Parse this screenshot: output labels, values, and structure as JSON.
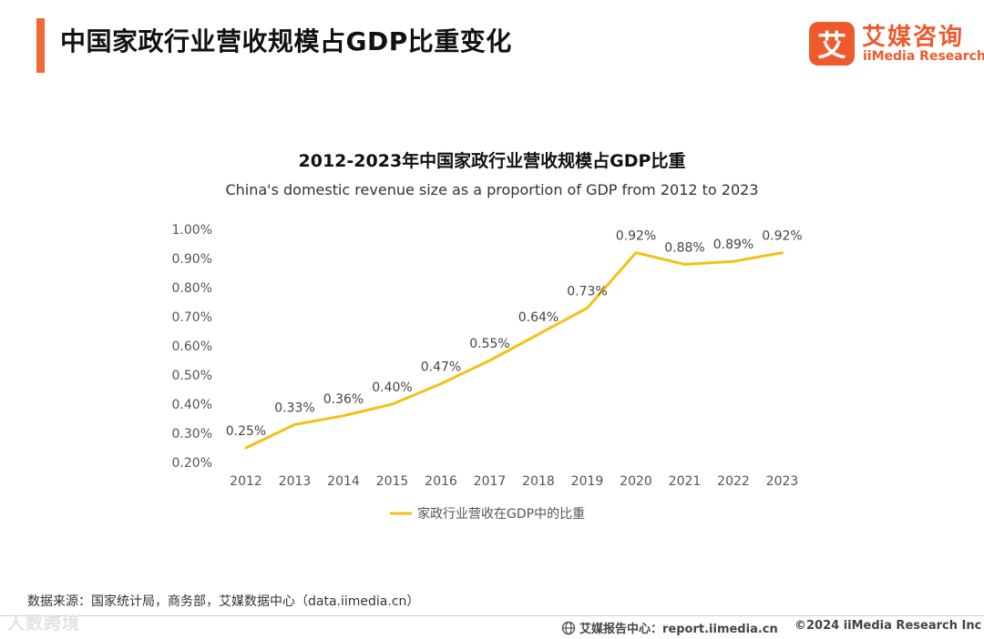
{
  "page": {
    "title": "中国家政行业营收规模占GDP比重变化",
    "source": "数据来源：国家统计局，商务部，艾媒数据中心（data.iimedia.cn）",
    "watermark": "人数跨境",
    "footer_center": "艾媒报告中心：report.iimedia.cn",
    "footer_right": "©2024  iiMedia Research  Inc"
  },
  "brand": {
    "name_cn": "艾媒咨询",
    "name_en": "iiMedia Research",
    "logo_char": "艾",
    "color": "#ee5a2c"
  },
  "colors": {
    "accent": "#f06a35",
    "line": "#f2c117",
    "axis_text": "#555555",
    "label_text": "#444444"
  },
  "chart_data": {
    "type": "line",
    "title": "2012-2023年中国家政行业营收规模占GDP比重",
    "subtitle": "China's domestic revenue size as a proportion of GDP from 2012 to 2023",
    "xlabel": "",
    "ylabel": "",
    "x": [
      "2012",
      "2013",
      "2014",
      "2015",
      "2016",
      "2017",
      "2018",
      "2019",
      "2020",
      "2021",
      "2022",
      "2023"
    ],
    "series": [
      {
        "name": "家政行业营收在GDP中的比重",
        "values": [
          0.25,
          0.33,
          0.36,
          0.4,
          0.47,
          0.55,
          0.64,
          0.73,
          0.92,
          0.88,
          0.89,
          0.92
        ],
        "labels": [
          "0.25%",
          "0.33%",
          "0.36%",
          "0.40%",
          "0.47%",
          "0.55%",
          "0.64%",
          "0.73%",
          "0.92%",
          "0.88%",
          "0.89%",
          "0.92%"
        ]
      }
    ],
    "ylim": [
      0.2,
      1.0
    ],
    "yticks": [
      0.2,
      0.3,
      0.4,
      0.5,
      0.6,
      0.7,
      0.8,
      0.9,
      1.0
    ],
    "ytick_labels": [
      "0.20%",
      "0.30%",
      "0.40%",
      "0.50%",
      "0.60%",
      "0.70%",
      "0.80%",
      "0.90%",
      "1.00%"
    ],
    "grid": false,
    "legend": "bottom"
  }
}
